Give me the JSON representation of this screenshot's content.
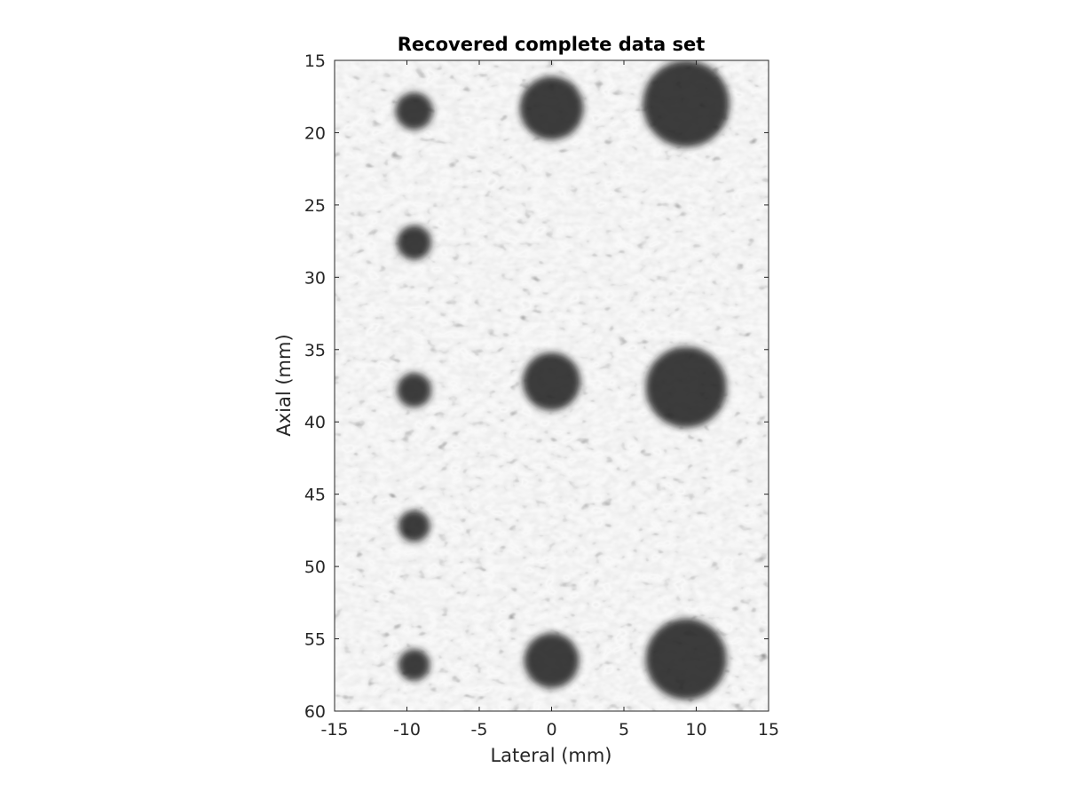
{
  "chart_data": {
    "type": "heatmap",
    "title": "Recovered complete data set",
    "xlabel": "Lateral (mm)",
    "ylabel": "Axial (mm)",
    "xlim": [
      -15,
      15
    ],
    "ylim": [
      15,
      60
    ],
    "y_direction": "reversed",
    "xticks": [
      -15,
      -10,
      -5,
      0,
      5,
      10,
      15
    ],
    "yticks": [
      15,
      20,
      25,
      30,
      35,
      40,
      45,
      50,
      55,
      60
    ],
    "colormap": "gray",
    "grid": false,
    "background_speckle": "bright speckle texture",
    "cysts": [
      {
        "x": -9.5,
        "y": 18.5,
        "r": 1.3
      },
      {
        "x": 0.0,
        "y": 18.3,
        "r": 2.2
      },
      {
        "x": 9.3,
        "y": 18.0,
        "r": 3.0
      },
      {
        "x": -9.5,
        "y": 27.6,
        "r": 1.2
      },
      {
        "x": -9.5,
        "y": 37.8,
        "r": 1.2
      },
      {
        "x": 0.0,
        "y": 37.2,
        "r": 2.0
      },
      {
        "x": 9.3,
        "y": 37.6,
        "r": 2.8
      },
      {
        "x": -9.5,
        "y": 47.2,
        "r": 1.1
      },
      {
        "x": -9.5,
        "y": 56.8,
        "r": 1.1
      },
      {
        "x": 0.0,
        "y": 56.5,
        "r": 1.9
      },
      {
        "x": 9.3,
        "y": 56.4,
        "r": 2.8
      }
    ]
  }
}
